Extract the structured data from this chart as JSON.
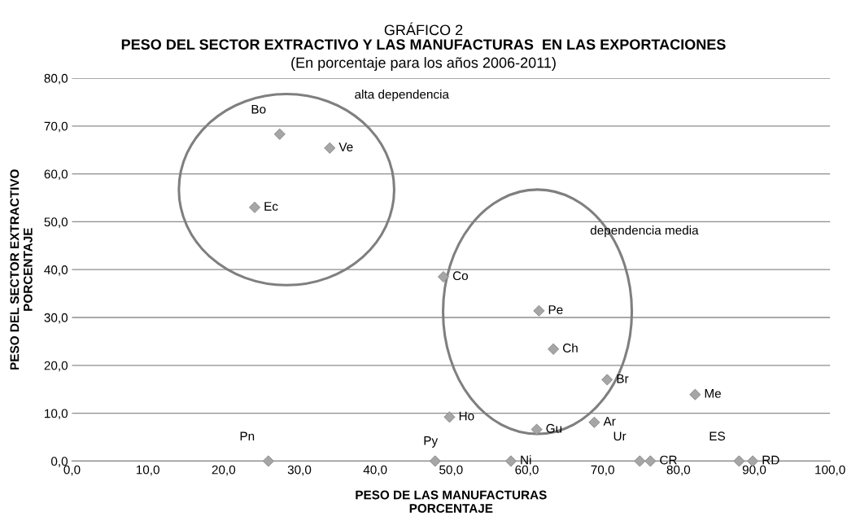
{
  "chart_data": {
    "type": "scatter",
    "title": "PESO DEL SECTOR EXTRACTIVO Y LAS MANUFACTURAS  EN LAS EXPORTACIONES",
    "subtitle": "(En porcentaje para los años 2006-2011)",
    "xlabel": "PESO DE LAS MANUFACTURAS\nPORCENTAJE",
    "ylabel": "PESO DEL SECTOR EXTRACTIVO\nPORCENTAJE",
    "series": [
      {
        "color": "#a6a6a6",
        "x": [
          27.4,
          34.0,
          24.1,
          49.0,
          61.6,
          63.5,
          70.6,
          82.2,
          49.8,
          61.3,
          68.9,
          25.9,
          47.9,
          57.9,
          74.9,
          76.3,
          88.0,
          89.8
        ],
        "values": [
          68.3,
          65.4,
          53.0,
          38.5,
          31.4,
          23.4,
          17.0,
          13.9,
          9.2,
          6.6,
          8.1,
          0,
          0,
          0,
          0,
          0,
          0,
          0
        ]
      }
    ],
    "annotations": [
      "GRÁFICO 2",
      "alta dependencia",
      "dependencia media",
      {
        "text": "Bo",
        "x": 27.4,
        "y": 68.3
      },
      {
        "text": "Ve",
        "x": 34.0,
        "y": 65.4
      },
      {
        "text": "Ec",
        "x": 24.1,
        "y": 53.0
      },
      {
        "text": "Co",
        "x": 49.0,
        "y": 38.5
      },
      {
        "text": "Pe",
        "x": 61.6,
        "y": 31.4
      },
      {
        "text": "Ch",
        "x": 63.5,
        "y": 23.4
      },
      {
        "text": "Br",
        "x": 70.6,
        "y": 17.0
      },
      {
        "text": "Me",
        "x": 82.2,
        "y": 13.9
      },
      {
        "text": "Ho",
        "x": 49.8,
        "y": 9.2
      },
      {
        "text": "Gu",
        "x": 61.3,
        "y": 6.6
      },
      {
        "text": "Ar",
        "x": 68.9,
        "y": 8.1
      },
      {
        "text": "Pn",
        "x": 25.9,
        "y": 0
      },
      {
        "text": "Py",
        "x": 47.9,
        "y": 0
      },
      {
        "text": "Ni",
        "x": 57.9,
        "y": 0
      },
      {
        "text": "Ur",
        "x": 74.9,
        "y": 0
      },
      {
        "text": "CR",
        "x": 76.3,
        "y": 0
      },
      {
        "text": "ES",
        "x": 88.0,
        "y": 0
      },
      {
        "text": "RD",
        "x": 89.8,
        "y": 0
      }
    ],
    "xlim": [
      0,
      100
    ],
    "xticks": [
      {
        "value": 0,
        "label": "0,0"
      },
      {
        "value": 10,
        "label": "10,0"
      },
      {
        "value": 20,
        "label": "20,0"
      },
      {
        "value": 30,
        "label": "30,0"
      },
      {
        "value": 40,
        "label": "40,0"
      },
      {
        "value": 50,
        "label": "50,0"
      },
      {
        "value": 60,
        "label": "60,0"
      },
      {
        "value": 70,
        "label": "70,0"
      },
      {
        "value": 80,
        "label": "80,0"
      },
      {
        "value": 90,
        "label": "90,0"
      },
      {
        "value": 100,
        "label": "100,0"
      }
    ],
    "ylim": [
      0,
      80
    ],
    "yticks": [
      {
        "value": 0,
        "label": "0,0"
      },
      {
        "value": 10,
        "label": "10,0"
      },
      {
        "value": 20,
        "label": "20,0"
      },
      {
        "value": 30,
        "label": "30,0"
      },
      {
        "value": 40,
        "label": "40,0"
      },
      {
        "value": 50,
        "label": "50,0"
      },
      {
        "value": 60,
        "label": "60,0"
      },
      {
        "value": 70,
        "label": "70,0"
      },
      {
        "value": 80,
        "label": "80,0"
      }
    ],
    "grid": "y",
    "marker": "diamond",
    "legend": false
  }
}
